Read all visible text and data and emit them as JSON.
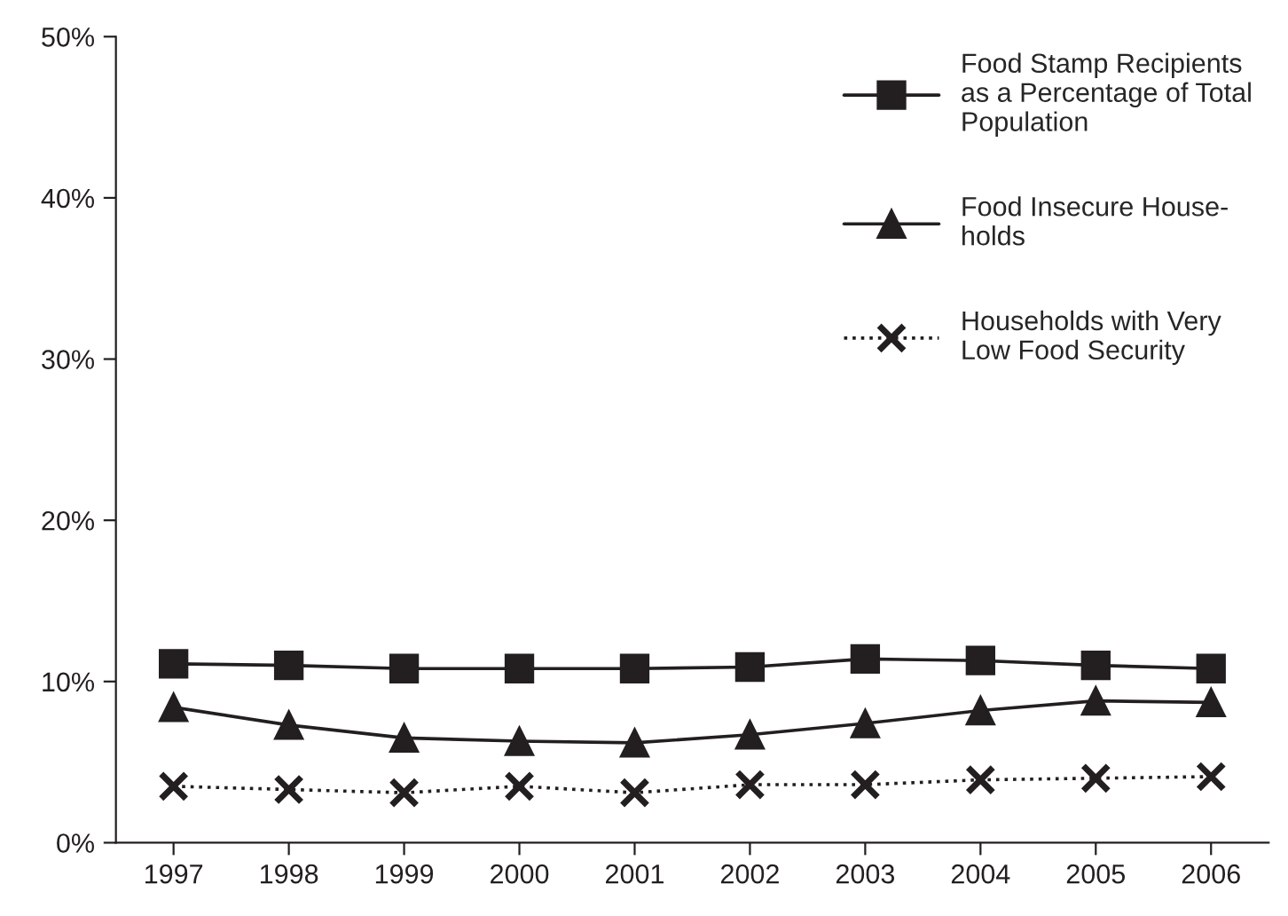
{
  "chart_data": {
    "type": "line",
    "categories": [
      "1997",
      "1998",
      "1999",
      "2000",
      "2001",
      "2002",
      "2003",
      "2004",
      "2005",
      "2006"
    ],
    "series": [
      {
        "name": "Food Stamp Recipients\nas a Percentage of Total\nPopulation",
        "color": "#231f20",
        "marker": "square",
        "line_style": "solid",
        "values": [
          11.1,
          11.0,
          10.8,
          10.8,
          10.8,
          10.9,
          11.4,
          11.3,
          11.0,
          10.8
        ]
      },
      {
        "name": "Food Insecure House-\nholds",
        "color": "#231f20",
        "marker": "triangle",
        "line_style": "solid",
        "values": [
          8.4,
          7.3,
          6.5,
          6.3,
          6.2,
          6.7,
          7.4,
          8.2,
          8.8,
          8.7
        ]
      },
      {
        "name": "Households with Very\nLow Food Security",
        "color": "#231f20",
        "marker": "cross",
        "line_style": "dotted",
        "values": [
          3.5,
          3.3,
          3.1,
          3.5,
          3.1,
          3.6,
          3.6,
          3.9,
          4.0,
          4.1
        ]
      }
    ],
    "ylim": [
      0,
      50
    ],
    "yticks": [
      {
        "value": 0,
        "label": "0%"
      },
      {
        "value": 10,
        "label": "10%"
      },
      {
        "value": 20,
        "label": "20%"
      },
      {
        "value": 30,
        "label": "30%"
      },
      {
        "value": 40,
        "label": "40%"
      },
      {
        "value": 50,
        "label": "50%"
      }
    ],
    "grid": false,
    "legend": "top right"
  }
}
